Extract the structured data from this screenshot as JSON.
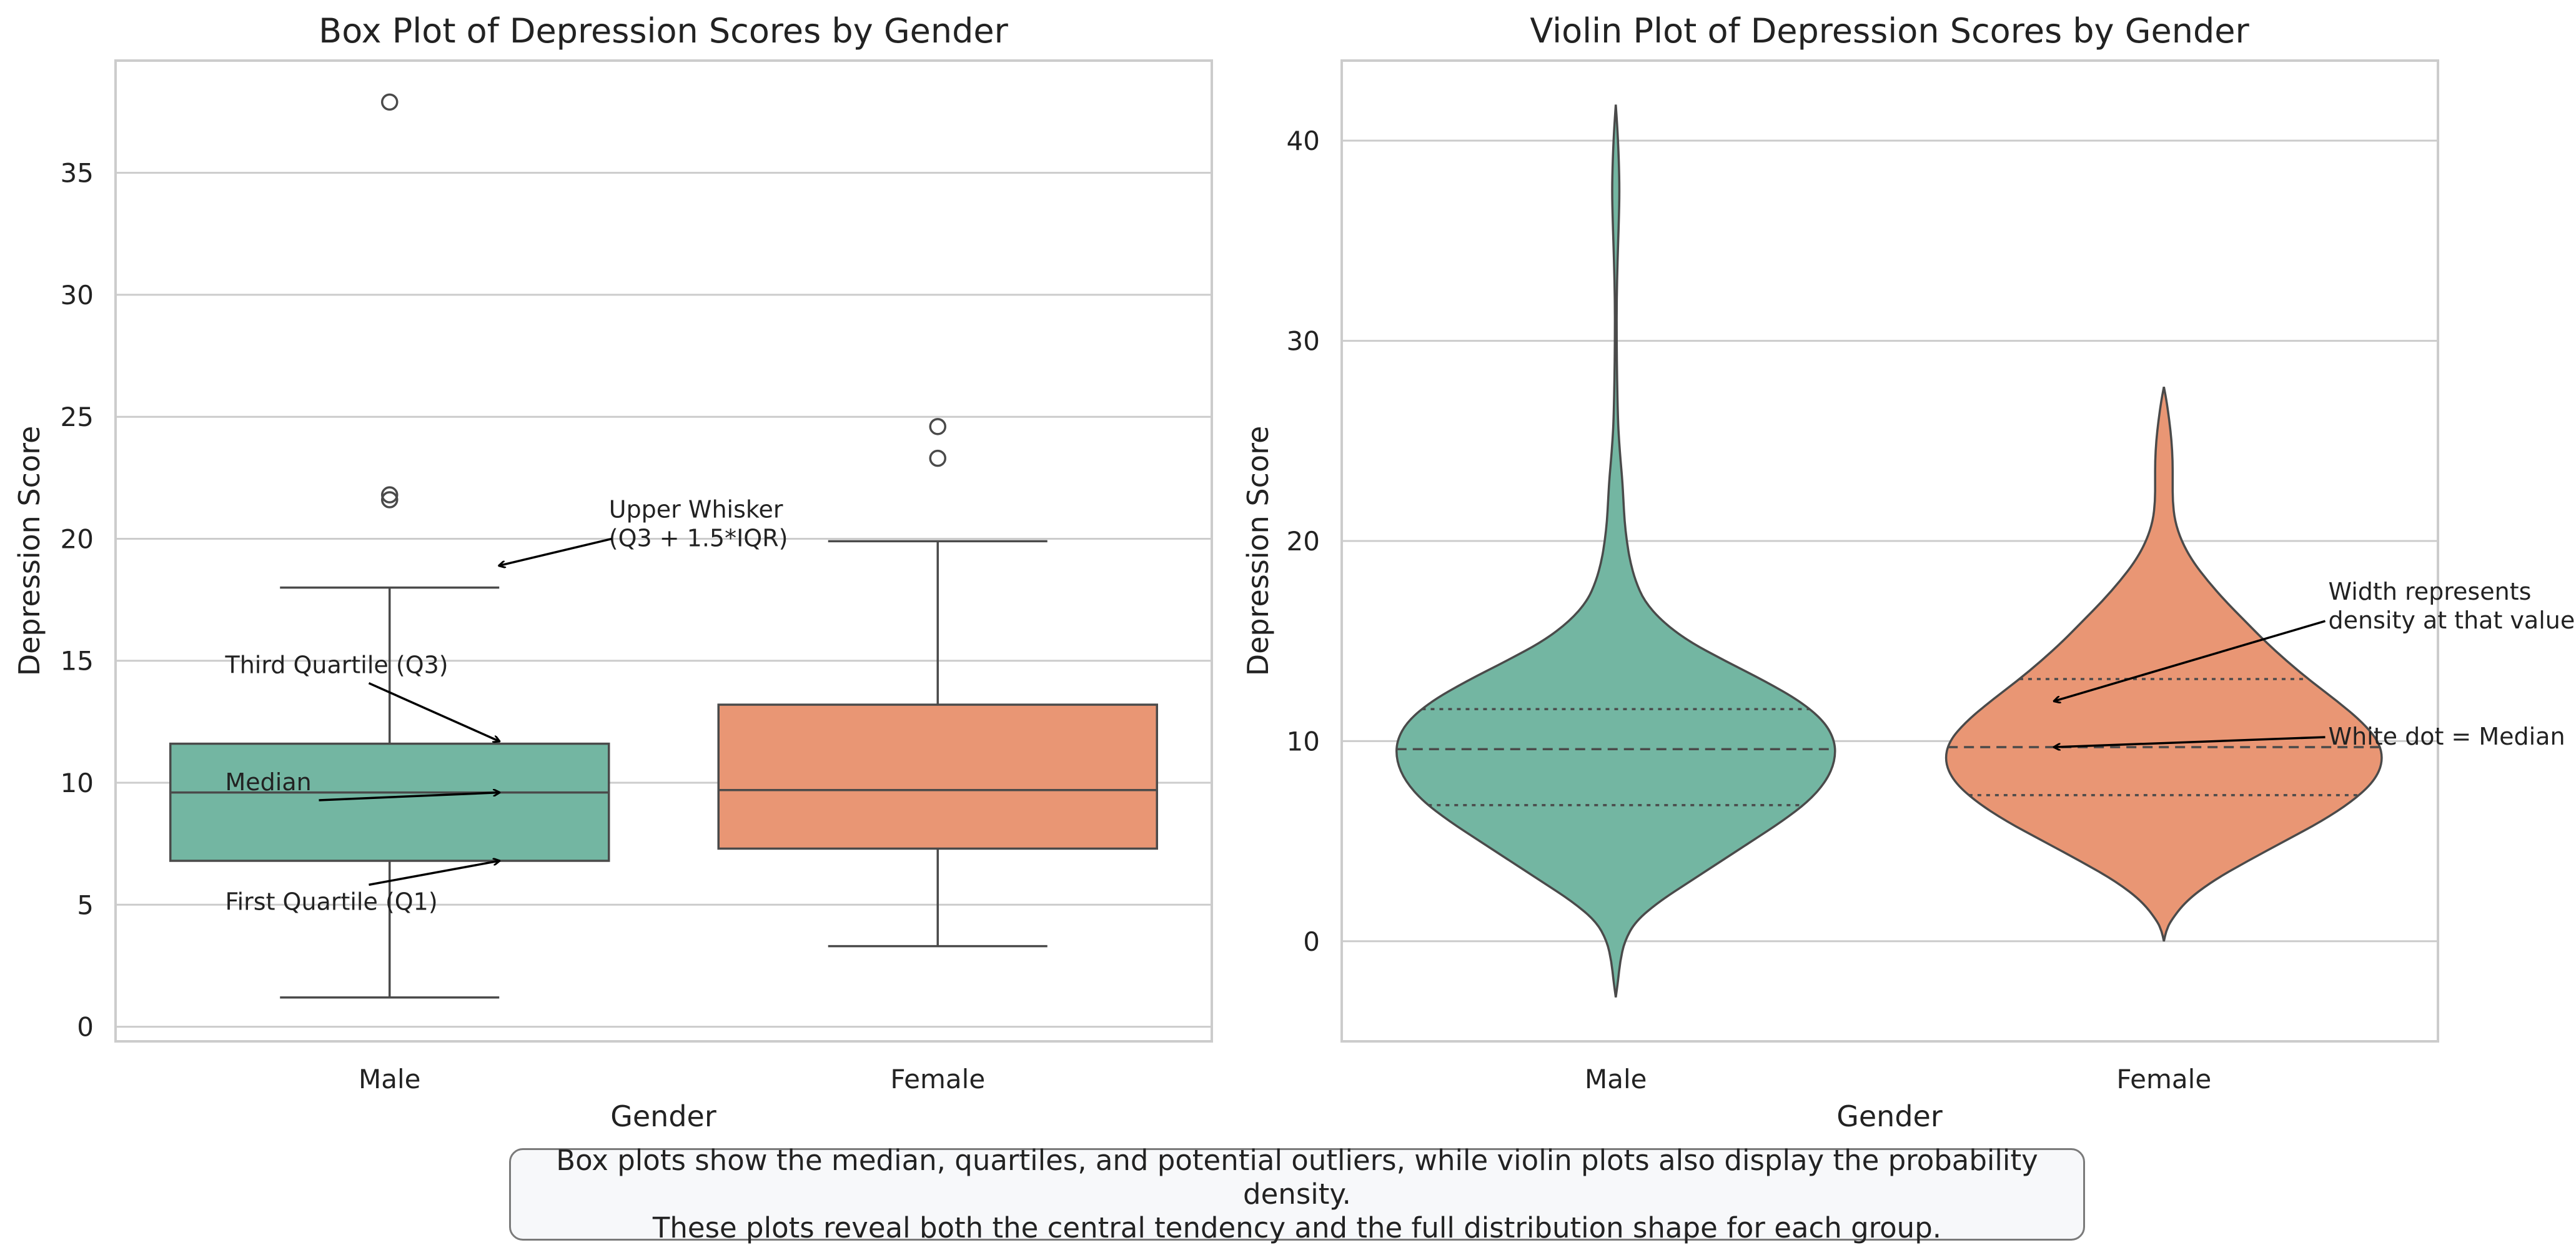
{
  "colors": {
    "male": "#73b6a2",
    "female": "#e99674",
    "edge": "#4a4a4a",
    "grid": "#cccccc",
    "frame": "#cccccc",
    "text": "#222222"
  },
  "chart_data": [
    {
      "type": "box",
      "title": "Box Plot of Depression Scores by Gender",
      "xlabel": "Gender",
      "ylabel": "Depression Score",
      "categories": [
        "Male",
        "Female"
      ],
      "ylim": [
        -0.6,
        39.6
      ],
      "yticks": [
        0,
        5,
        10,
        15,
        20,
        25,
        30,
        35
      ],
      "grid": true,
      "series": [
        {
          "name": "Male",
          "whisker_low": 1.2,
          "q1": 6.8,
          "median": 9.6,
          "q3": 11.6,
          "whisker_high": 18.0,
          "outliers": [
            37.9,
            21.8,
            21.6
          ]
        },
        {
          "name": "Female",
          "whisker_low": 3.3,
          "q1": 7.3,
          "median": 9.7,
          "q3": 13.2,
          "whisker_high": 19.9,
          "outliers": [
            24.6,
            23.3
          ]
        }
      ],
      "annotations": [
        {
          "text": "Upper Whisker\n(Q3 + 1.5*IQR)",
          "text_x": 0.4,
          "text_y": 20.0,
          "arrow_x": 0.2,
          "arrow_y": 18.9
        },
        {
          "text": "Third Quartile (Q3)",
          "text_x": -0.3,
          "text_y": 14.8,
          "arrow_x": 0.2,
          "arrow_y": 11.7
        },
        {
          "text": "Median",
          "text_x": -0.3,
          "text_y": 10.0,
          "arrow_x": 0.2,
          "arrow_y": 9.6
        },
        {
          "text": "First Quartile (Q1)",
          "text_x": -0.3,
          "text_y": 5.1,
          "arrow_x": 0.2,
          "arrow_y": 6.8
        }
      ]
    },
    {
      "type": "violin",
      "title": "Violin Plot of Depression Scores by Gender",
      "xlabel": "Gender",
      "ylabel": "Depression Score",
      "categories": [
        "Male",
        "Female"
      ],
      "ylim": [
        -5,
        44
      ],
      "yticks": [
        0,
        10,
        20,
        30,
        40
      ],
      "grid": true,
      "series": [
        {
          "name": "Male",
          "q1": 6.8,
          "median": 9.6,
          "q3": 11.6,
          "density": [
            [
              -2.8,
              0.0
            ],
            [
              -2,
              0.01
            ],
            [
              -1,
              0.02
            ],
            [
              0,
              0.04
            ],
            [
              1,
              0.09
            ],
            [
              2,
              0.2
            ],
            [
              3,
              0.34
            ],
            [
              4,
              0.48
            ],
            [
              5,
              0.62
            ],
            [
              6,
              0.76
            ],
            [
              7,
              0.88
            ],
            [
              8,
              0.96
            ],
            [
              9,
              1.0
            ],
            [
              10,
              1.0
            ],
            [
              11,
              0.95
            ],
            [
              12,
              0.84
            ],
            [
              13,
              0.68
            ],
            [
              14,
              0.5
            ],
            [
              15,
              0.33
            ],
            [
              16,
              0.21
            ],
            [
              17,
              0.13
            ],
            [
              18,
              0.09
            ],
            [
              19,
              0.065
            ],
            [
              20,
              0.05
            ],
            [
              21,
              0.04
            ],
            [
              22,
              0.035
            ],
            [
              23,
              0.03
            ],
            [
              24,
              0.022
            ],
            [
              25,
              0.015
            ],
            [
              26,
              0.01
            ],
            [
              28,
              0.006
            ],
            [
              30,
              0.004
            ],
            [
              32,
              0.004
            ],
            [
              34,
              0.008
            ],
            [
              36,
              0.014
            ],
            [
              37.5,
              0.017
            ],
            [
              39,
              0.014
            ],
            [
              40.5,
              0.008
            ],
            [
              41.8,
              0.0
            ]
          ]
        },
        {
          "name": "Female",
          "q1": 7.3,
          "median": 9.7,
          "q3": 13.1,
          "density": [
            [
              0,
              0.0
            ],
            [
              0.5,
              0.01
            ],
            [
              1,
              0.03
            ],
            [
              2,
              0.1
            ],
            [
              3,
              0.22
            ],
            [
              4,
              0.38
            ],
            [
              5,
              0.55
            ],
            [
              6,
              0.72
            ],
            [
              7,
              0.86
            ],
            [
              8,
              0.96
            ],
            [
              9,
              1.0
            ],
            [
              10,
              0.98
            ],
            [
              11,
              0.9
            ],
            [
              12,
              0.79
            ],
            [
              13,
              0.67
            ],
            [
              14,
              0.56
            ],
            [
              15,
              0.46
            ],
            [
              16,
              0.37
            ],
            [
              17,
              0.28
            ],
            [
              18,
              0.2
            ],
            [
              19,
              0.13
            ],
            [
              20,
              0.08
            ],
            [
              21,
              0.05
            ],
            [
              22,
              0.04
            ],
            [
              23,
              0.04
            ],
            [
              24,
              0.04
            ],
            [
              25,
              0.035
            ],
            [
              26,
              0.025
            ],
            [
              27,
              0.012
            ],
            [
              27.7,
              0.0
            ]
          ]
        }
      ],
      "annotations": [
        {
          "text": "Width represents\ndensity at that value",
          "text_x": 1.3,
          "text_y": 16.0,
          "arrow_x": 0.8,
          "arrow_y": 12.0
        },
        {
          "text": "White dot = Median",
          "text_x": 1.3,
          "text_y": 10.2,
          "arrow_x": 0.8,
          "arrow_y": 9.7
        }
      ]
    }
  ],
  "caption": {
    "line1": "Box plots show the median, quartiles, and potential outliers, while violin plots also display the probability density.",
    "line2": "These plots reveal both the central tendency and the full distribution shape for each group."
  }
}
